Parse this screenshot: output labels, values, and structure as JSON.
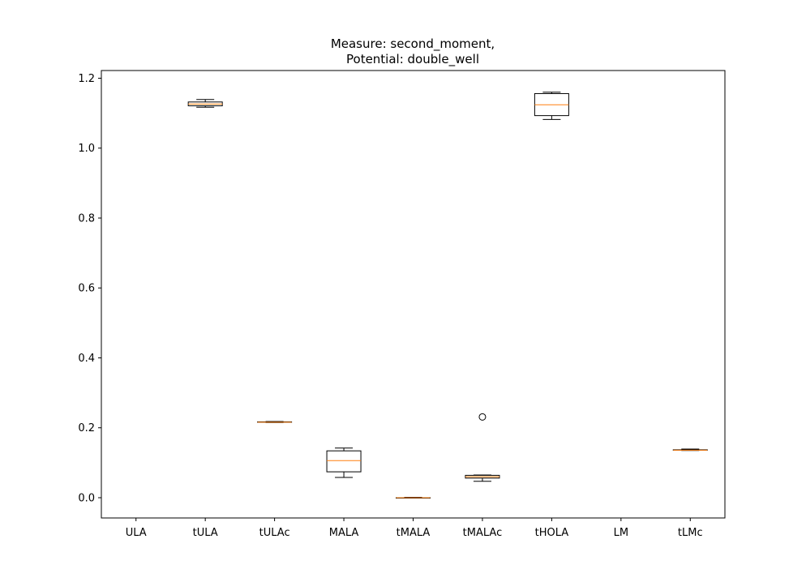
{
  "chart_data": {
    "type": "box",
    "title_lines": [
      "Measure: second_moment,",
      "Potential: double_well"
    ],
    "xlabel": "",
    "ylabel": "",
    "ylim": [
      -0.058,
      1.222
    ],
    "yticks": [
      0.0,
      0.2,
      0.4,
      0.6,
      0.8,
      1.0,
      1.2
    ],
    "ytick_labels": [
      "0.0",
      "0.2",
      "0.4",
      "0.6",
      "0.8",
      "1.0",
      "1.2"
    ],
    "grid": false,
    "colors": {
      "box": "#000000",
      "median": "#ff7f0e",
      "axes": "#000000"
    },
    "categories": [
      "ULA",
      "tULA",
      "tULAc",
      "MALA",
      "tMALA",
      "tMALAc",
      "tHOLA",
      "LM",
      "tLMc"
    ],
    "boxes": [
      null,
      {
        "whislo": 1.117,
        "q1": 1.121,
        "med": 1.126,
        "q3": 1.132,
        "whishi": 1.139,
        "fliers": []
      },
      {
        "whislo": 0.215,
        "q1": 0.216,
        "med": 0.216,
        "q3": 0.217,
        "whishi": 0.218,
        "fliers": []
      },
      {
        "whislo": 0.058,
        "q1": 0.074,
        "med": 0.106,
        "q3": 0.134,
        "whishi": 0.142,
        "fliers": []
      },
      {
        "whislo": -0.001,
        "q1": 0.0,
        "med": 0.0,
        "q3": 0.0,
        "whishi": 0.001,
        "fliers": []
      },
      {
        "whislo": 0.047,
        "q1": 0.056,
        "med": 0.06,
        "q3": 0.064,
        "whishi": 0.065,
        "fliers": [
          0.231
        ]
      },
      {
        "whislo": 1.082,
        "q1": 1.093,
        "med": 1.124,
        "q3": 1.156,
        "whishi": 1.16,
        "fliers": []
      },
      null,
      {
        "whislo": 0.135,
        "q1": 0.136,
        "med": 0.136,
        "q3": 0.137,
        "whishi": 0.139,
        "fliers": []
      }
    ]
  }
}
